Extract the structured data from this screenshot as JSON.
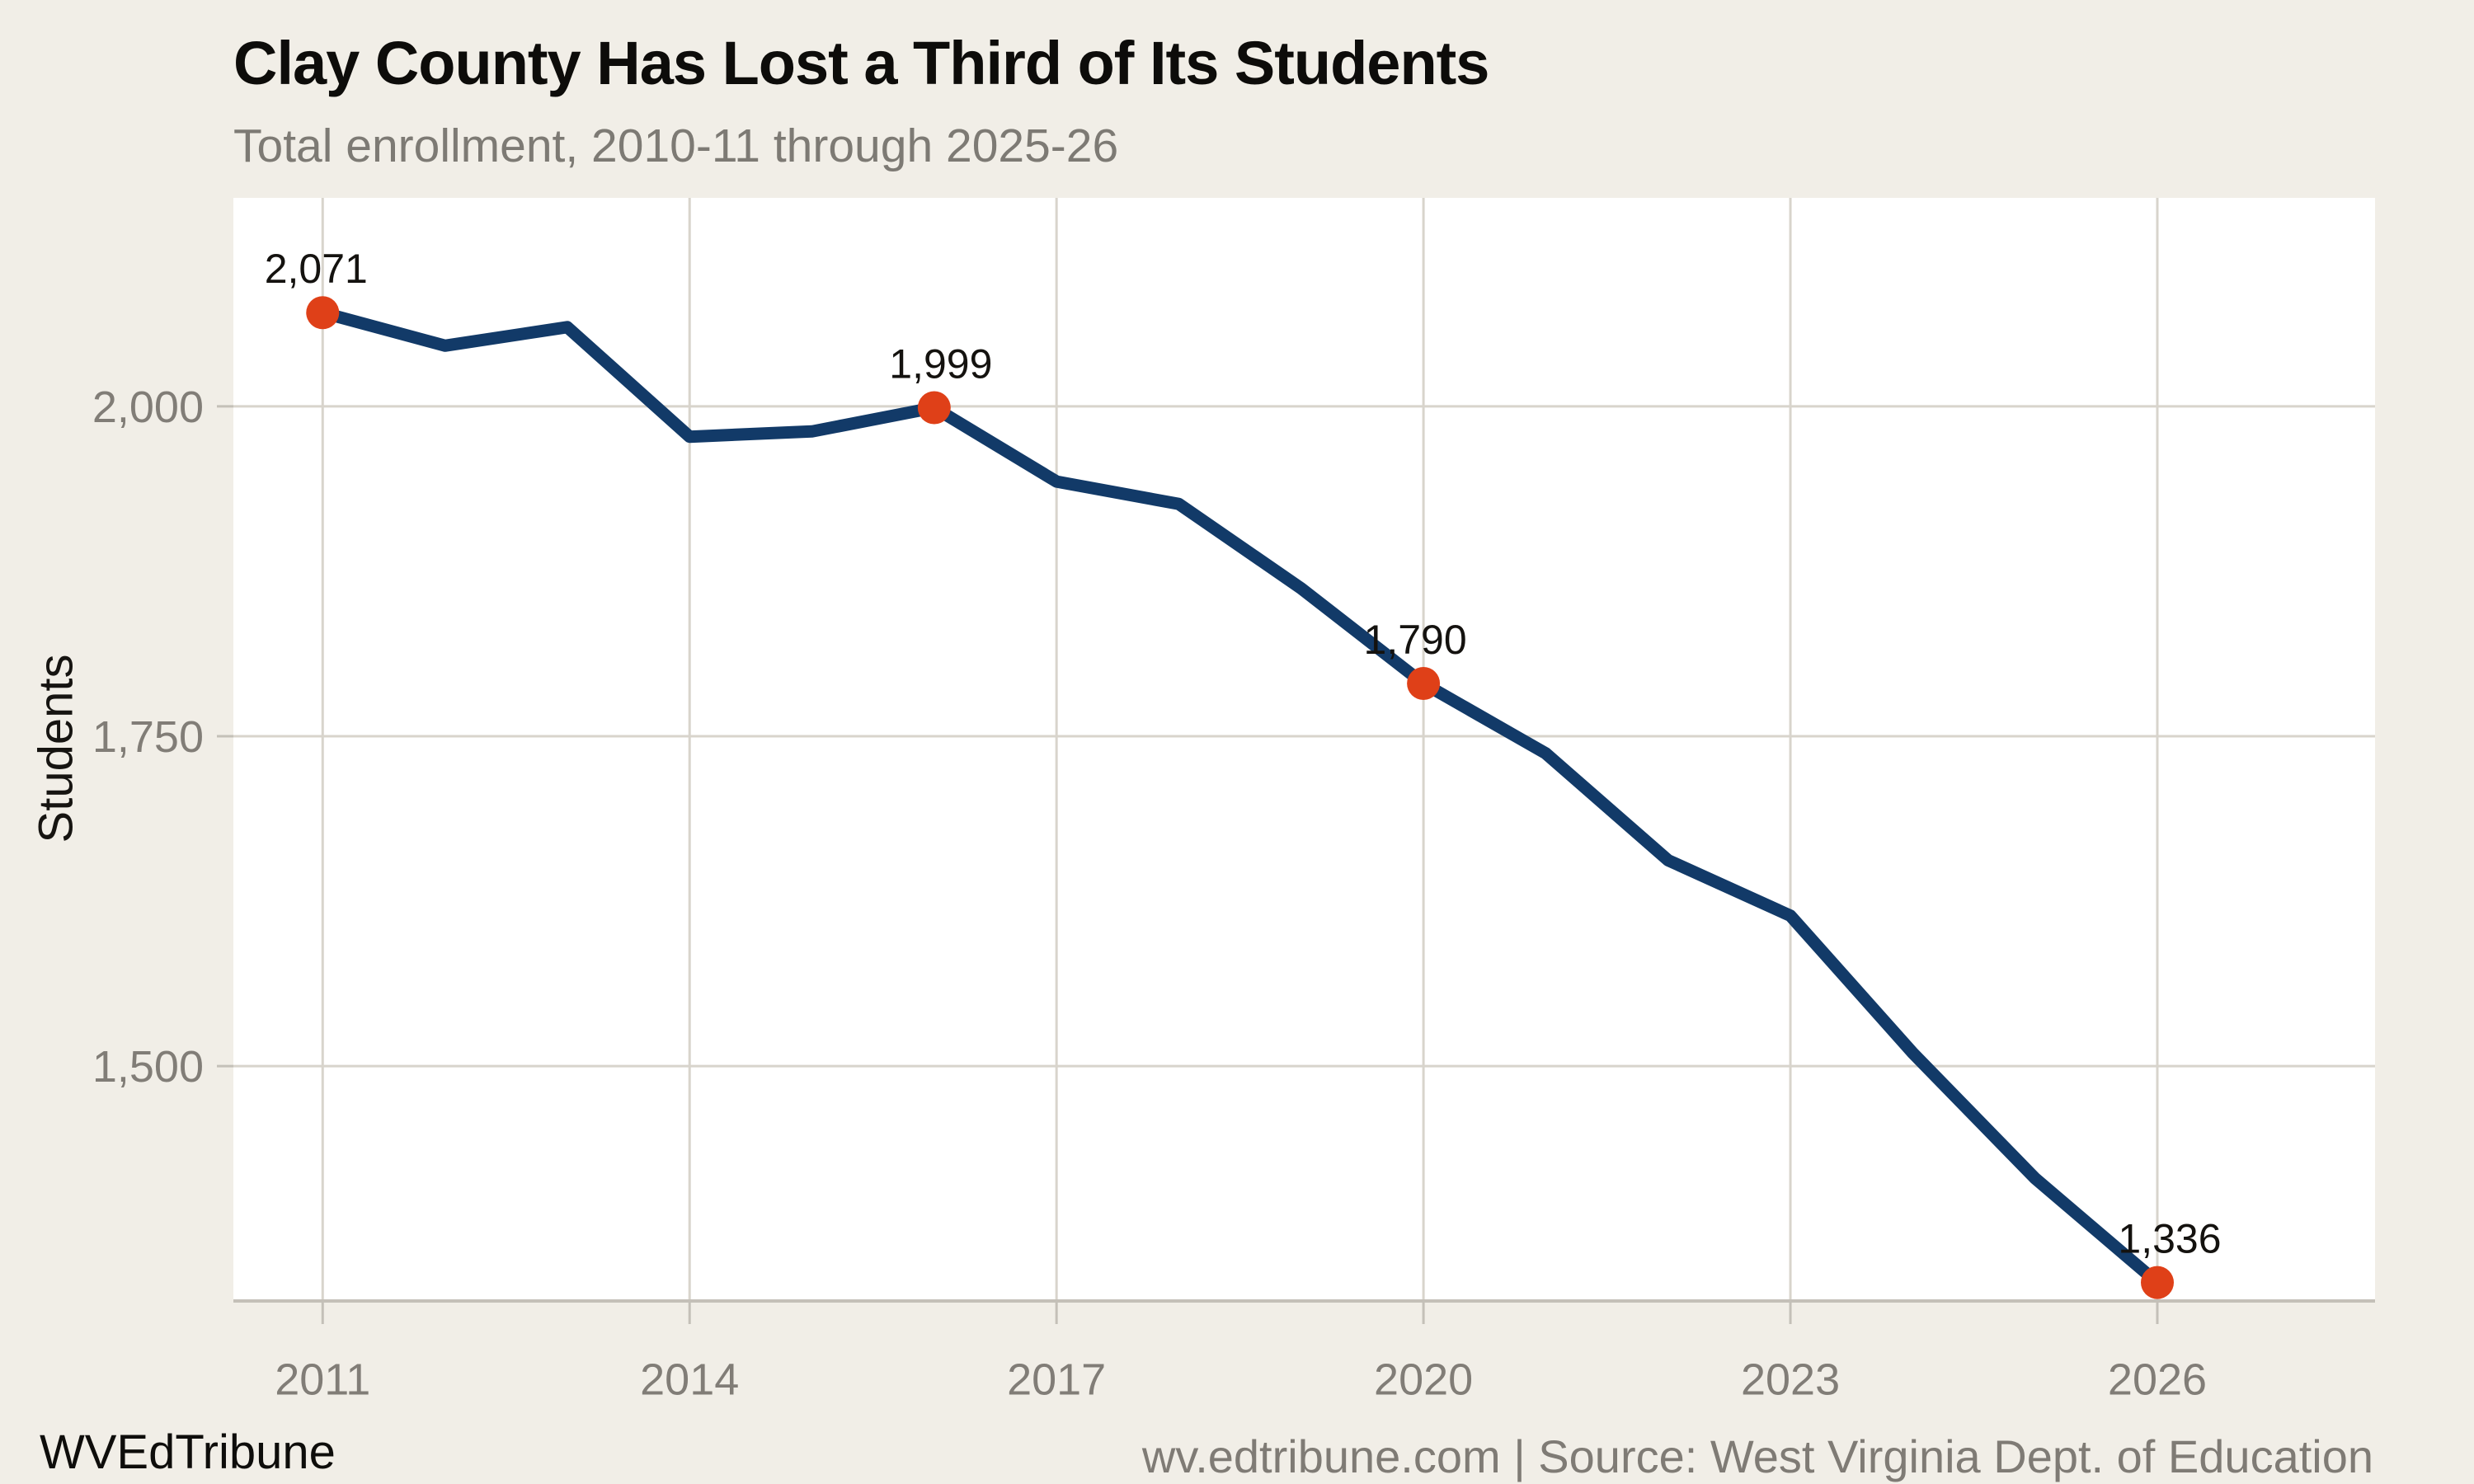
{
  "header": {
    "title": "Clay County Has Lost a Third of Its Students",
    "subtitle": "Total enrollment, 2010-11 through 2025-26"
  },
  "footer": {
    "brand": "WVEdTribune",
    "source": "wv.edtribune.com | Source: West Virginia Dept. of Education"
  },
  "colors": {
    "background": "#f1eee7",
    "plot_background": "#ffffff",
    "gridline": "#d8d4cc",
    "axis_line": "#c4c0b8",
    "tick_mark": "#c4c0b8",
    "tick_text": "#817d77",
    "line": "#123a68",
    "marker": "#df4018",
    "point_label_text": "#14120f"
  },
  "chart_data": {
    "type": "line",
    "title": "Clay County Has Lost a Third of Its Students",
    "subtitle": "Total enrollment, 2010-11 through 2025-26",
    "xlabel": "",
    "ylabel": "Students",
    "x": [
      2011,
      2012,
      2013,
      2014,
      2015,
      2016,
      2017,
      2018,
      2019,
      2020,
      2021,
      2022,
      2023,
      2024,
      2025,
      2026
    ],
    "values": [
      2071,
      2046,
      2060,
      1977,
      1981,
      1999,
      1943,
      1926,
      1862,
      1790,
      1737,
      1656,
      1614,
      1510,
      1415,
      1336
    ],
    "series_name": "Total enrollment",
    "labeled_points": [
      {
        "x": 2011,
        "value": 2071,
        "label": "2,071"
      },
      {
        "x": 2016,
        "value": 1999,
        "label": "1,999"
      },
      {
        "x": 2020,
        "value": 1790,
        "label": "1,790"
      },
      {
        "x": 2026,
        "value": 1336,
        "label": "1,336"
      }
    ],
    "x_ticks": [
      {
        "year": 2011,
        "label": "2011"
      },
      {
        "year": 2014,
        "label": "2014"
      },
      {
        "year": 2017,
        "label": "2017"
      },
      {
        "year": 2020,
        "label": "2020"
      },
      {
        "year": 2023,
        "label": "2023"
      },
      {
        "year": 2026,
        "label": "2026"
      }
    ],
    "y_ticks": [
      {
        "value": 2000,
        "label": "2,000"
      },
      {
        "value": 1750,
        "label": "1,750"
      },
      {
        "value": 1500,
        "label": "1,500"
      }
    ],
    "xlim": [
      2010.27,
      2027.78
    ],
    "ylim": [
      1322,
      2158
    ],
    "grid": true,
    "legend": "none"
  }
}
